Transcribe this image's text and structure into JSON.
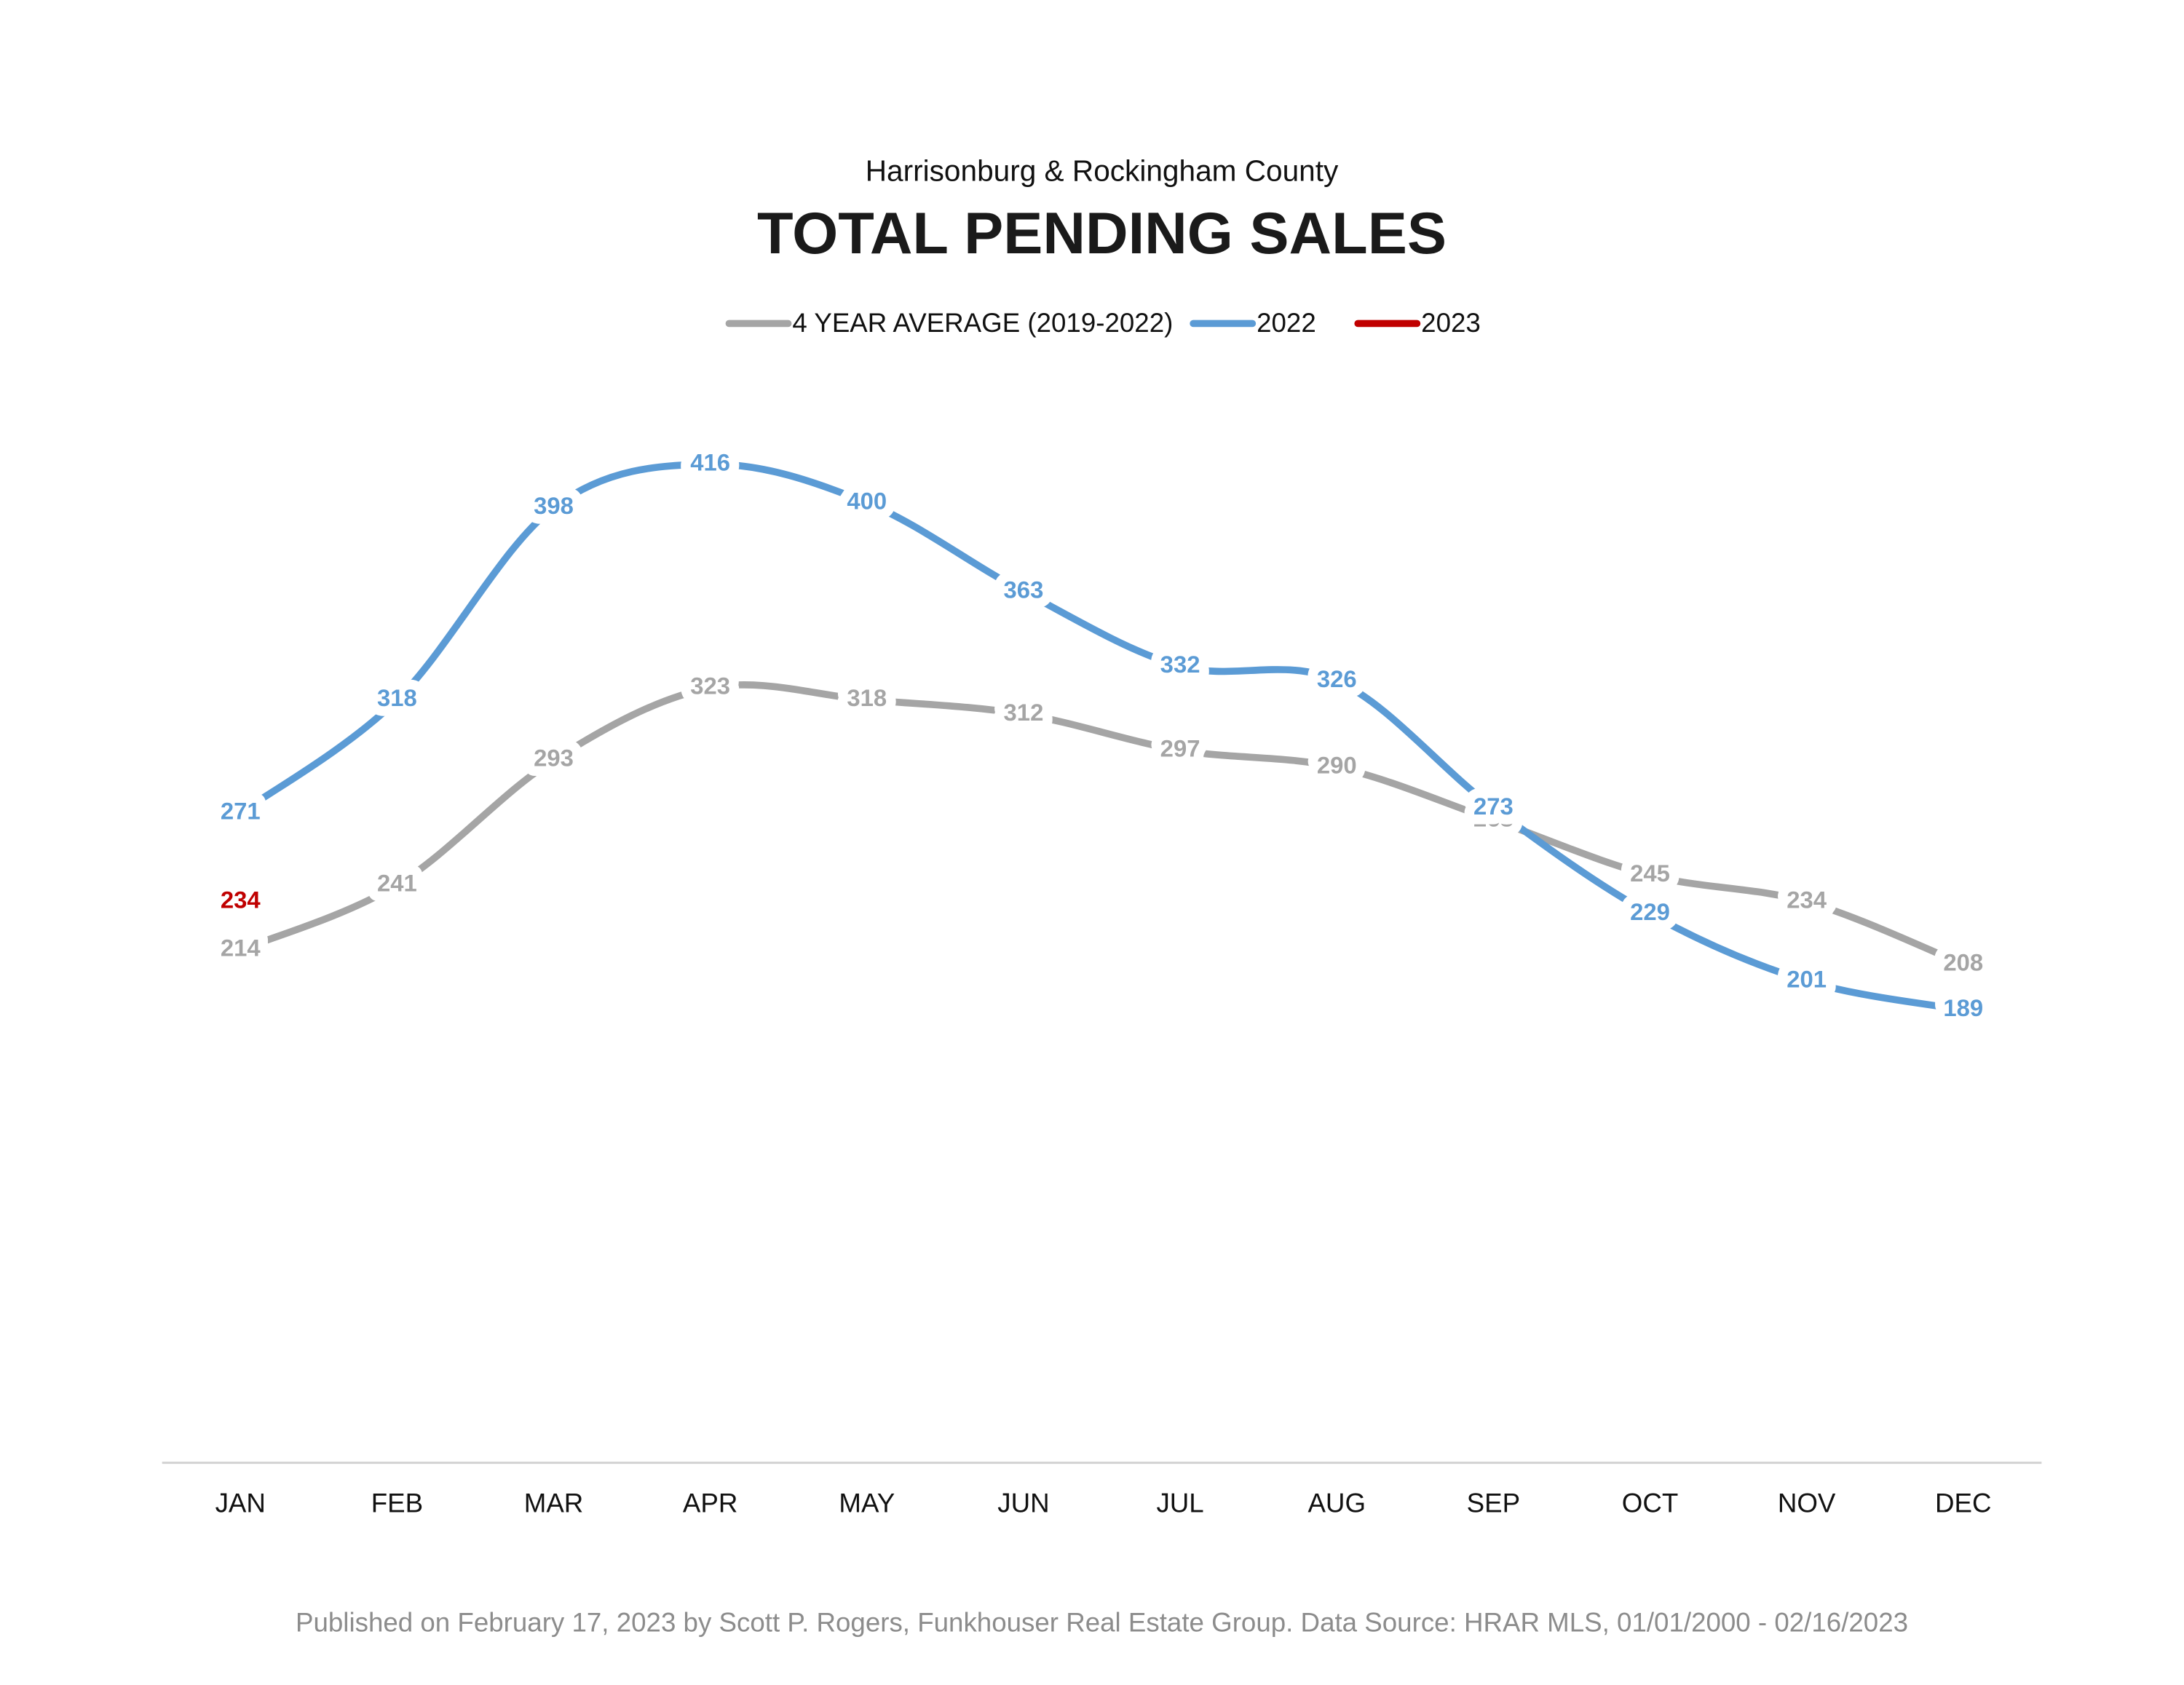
{
  "chart_data": {
    "type": "line",
    "subtitle": "Harrisonburg & Rockingham County",
    "title": "TOTAL PENDING SALES",
    "footer": "Published on February 17, 2023 by Scott P. Rogers, Funkhouser Real Estate Group. Data Source: HRAR MLS, 01/01/2000 - 02/16/2023",
    "categories": [
      "JAN",
      "FEB",
      "MAR",
      "APR",
      "MAY",
      "JUN",
      "JUL",
      "AUG",
      "SEP",
      "OCT",
      "NOV",
      "DEC"
    ],
    "series": [
      {
        "name": "4 YEAR AVERAGE (2019-2022)",
        "color": "#a5a5a5",
        "values": [
          214,
          241,
          293,
          323,
          318,
          312,
          297,
          290,
          268,
          245,
          234,
          208
        ]
      },
      {
        "name": "2022",
        "color": "#5b9bd5",
        "values": [
          271,
          318,
          398,
          416,
          400,
          363,
          332,
          326,
          273,
          229,
          201,
          189
        ]
      },
      {
        "name": "2023",
        "color": "#c00000",
        "values": [
          234,
          null,
          null,
          null,
          null,
          null,
          null,
          null,
          null,
          null,
          null,
          null
        ]
      }
    ],
    "ylim": [
      0,
      450
    ],
    "legend": "top",
    "smooth": true,
    "data_labels": true
  }
}
